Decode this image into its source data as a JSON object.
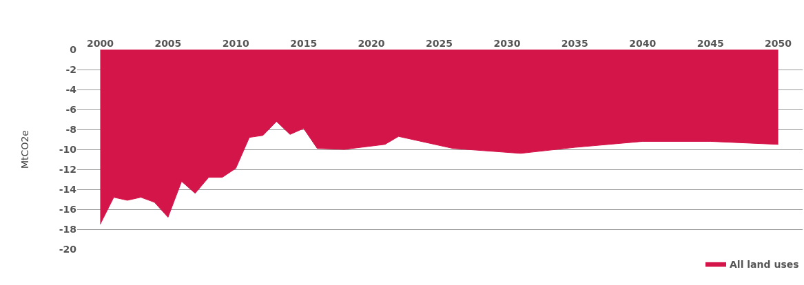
{
  "chart_data": {
    "type": "area",
    "ylabel": "MtCO2e",
    "x": [
      2000,
      2001,
      2002,
      2003,
      2004,
      2005,
      2006,
      2007,
      2008,
      2009,
      2010,
      2011,
      2012,
      2013,
      2014,
      2015,
      2016,
      2018,
      2021,
      2022,
      2026,
      2031,
      2035,
      2040,
      2045,
      2050
    ],
    "series": [
      {
        "name": "All land uses",
        "color": "#d4154a",
        "values": [
          -17.5,
          -14.8,
          -15.1,
          -14.8,
          -15.3,
          -16.8,
          -13.2,
          -14.4,
          -12.8,
          -12.8,
          -11.9,
          -8.8,
          -8.6,
          -7.2,
          -8.5,
          -7.9,
          -9.9,
          -10.0,
          -9.5,
          -8.7,
          -9.9,
          -10.4,
          -9.8,
          -9.2,
          -9.2,
          -9.5
        ]
      }
    ],
    "xlim": [
      1998.3,
      2051.8
    ],
    "xticks": [
      2000,
      2005,
      2010,
      2015,
      2020,
      2025,
      2030,
      2035,
      2040,
      2045,
      2050
    ],
    "ylim": [
      -20,
      0
    ],
    "yticks": [
      0,
      -2,
      -4,
      -6,
      -8,
      -10,
      -12,
      -14,
      -16,
      -18,
      -20
    ],
    "grid": "y",
    "legend": "bottom right"
  }
}
